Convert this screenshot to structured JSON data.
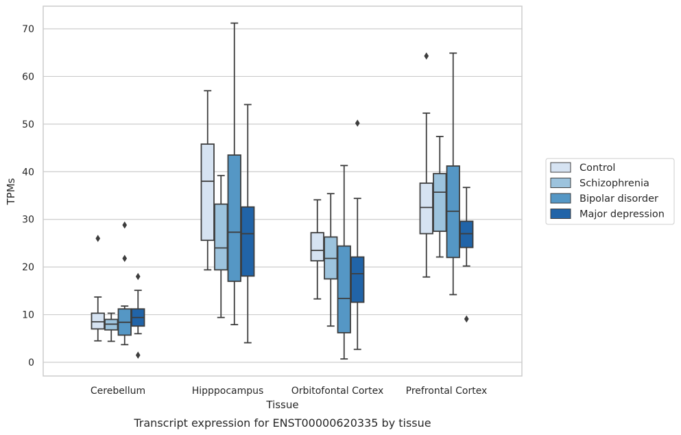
{
  "chart_data": {
    "type": "box",
    "xlabel": "Tissue",
    "ylabel": "TPMs",
    "caption": "Transcript expression for ENST00000620335 by tissue",
    "ylim": [
      -3,
      75
    ],
    "yticks": [
      0,
      10,
      20,
      30,
      40,
      50,
      60,
      70
    ],
    "grid": "horizontal",
    "legend_position": "right",
    "categories": [
      "Cerebellum",
      "Hipppocampus",
      "Orbitofontal Cortex",
      "Prefrontal Cortex"
    ],
    "series": [
      {
        "name": "Control",
        "color": "#d6e3f2",
        "boxes": [
          {
            "whislo": 4.5,
            "q1": 7.0,
            "med": 8.5,
            "q3": 10.3,
            "whishi": 13.7,
            "fliers": [
              26.0
            ]
          },
          {
            "whislo": 19.4,
            "q1": 25.6,
            "med": 38.0,
            "q3": 45.8,
            "whishi": 57.0,
            "fliers": []
          },
          {
            "whislo": 13.3,
            "q1": 21.3,
            "med": 23.5,
            "q3": 27.2,
            "whishi": 34.1,
            "fliers": []
          },
          {
            "whislo": 17.9,
            "q1": 27.0,
            "med": 32.5,
            "q3": 37.6,
            "whishi": 52.3,
            "fliers": [
              64.3
            ]
          }
        ]
      },
      {
        "name": "Schizophrenia",
        "color": "#9cc3dd",
        "boxes": [
          {
            "whislo": 4.4,
            "q1": 6.8,
            "med": 8.0,
            "q3": 9.0,
            "whishi": 10.3,
            "fliers": []
          },
          {
            "whislo": 9.4,
            "q1": 19.4,
            "med": 24.0,
            "q3": 33.2,
            "whishi": 39.2,
            "fliers": []
          },
          {
            "whislo": 7.6,
            "q1": 17.5,
            "med": 21.8,
            "q3": 26.3,
            "whishi": 35.4,
            "fliers": []
          },
          {
            "whislo": 22.1,
            "q1": 27.5,
            "med": 35.7,
            "q3": 39.6,
            "whishi": 47.4,
            "fliers": []
          }
        ]
      },
      {
        "name": "Bipolar disorder",
        "color": "#5597c5",
        "boxes": [
          {
            "whislo": 3.7,
            "q1": 5.7,
            "med": 8.4,
            "q3": 11.2,
            "whishi": 11.8,
            "fliers": [
              21.8,
              28.8
            ]
          },
          {
            "whislo": 7.9,
            "q1": 17.0,
            "med": 27.3,
            "q3": 43.5,
            "whishi": 71.2,
            "fliers": []
          },
          {
            "whislo": 0.7,
            "q1": 6.2,
            "med": 13.4,
            "q3": 24.4,
            "whishi": 41.3,
            "fliers": []
          },
          {
            "whislo": 14.2,
            "q1": 22.0,
            "med": 31.7,
            "q3": 41.2,
            "whishi": 64.9,
            "fliers": []
          }
        ]
      },
      {
        "name": "Major depression",
        "color": "#2164a8",
        "boxes": [
          {
            "whislo": 6.0,
            "q1": 7.6,
            "med": 9.4,
            "q3": 11.2,
            "whishi": 15.1,
            "fliers": [
              1.5,
              18.0
            ]
          },
          {
            "whislo": 4.1,
            "q1": 18.1,
            "med": 27.0,
            "q3": 32.6,
            "whishi": 54.1,
            "fliers": []
          },
          {
            "whislo": 2.7,
            "q1": 12.6,
            "med": 18.6,
            "q3": 22.1,
            "whishi": 34.4,
            "fliers": [
              50.2
            ]
          },
          {
            "whislo": 20.2,
            "q1": 24.1,
            "med": 27.0,
            "q3": 29.6,
            "whishi": 36.7,
            "fliers": [
              9.1
            ]
          }
        ]
      }
    ]
  }
}
